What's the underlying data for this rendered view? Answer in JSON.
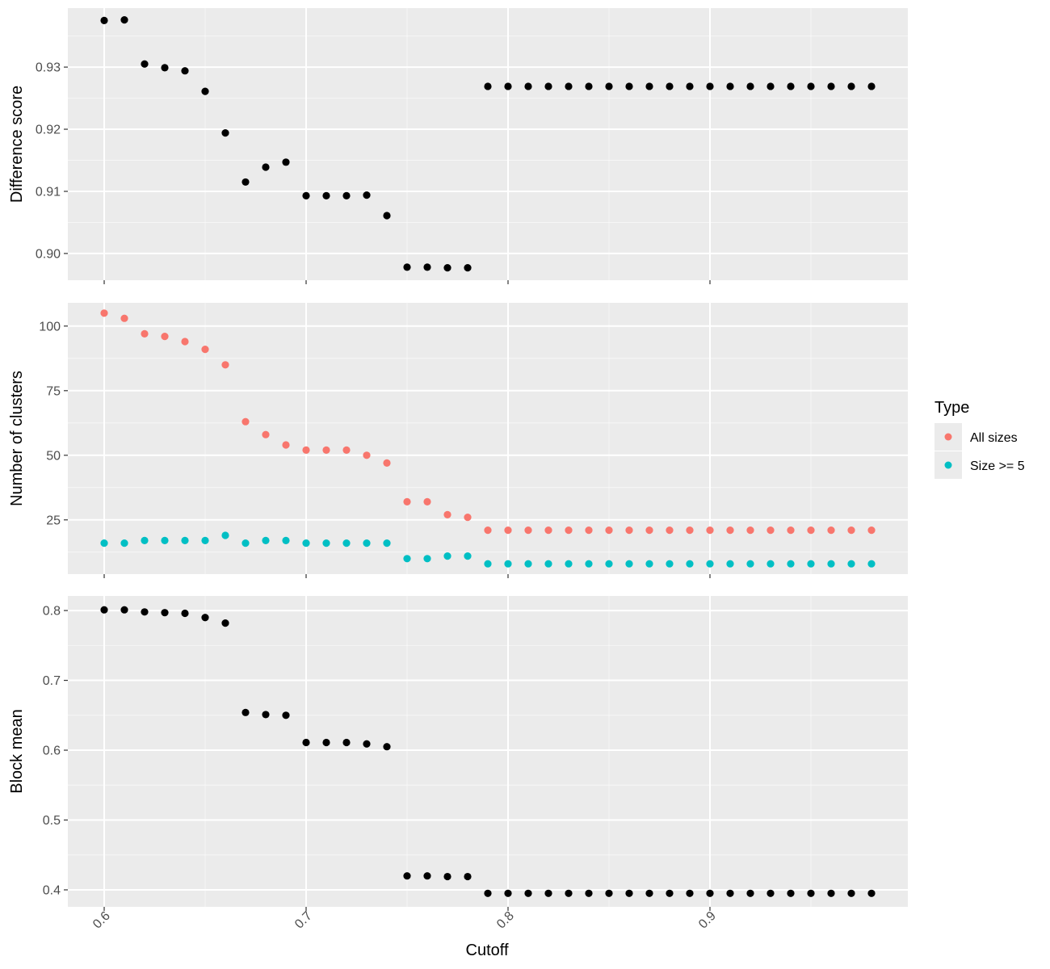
{
  "chart_data": {
    "type": "scatter",
    "x_axis": {
      "label": "Cutoff",
      "range": [
        0.582,
        0.998
      ],
      "ticks": [
        0.6,
        0.7,
        0.8,
        0.9
      ],
      "tick_labels": [
        "0.6",
        "0.7",
        "0.8",
        "0.9"
      ],
      "minor_ticks": [
        0.65,
        0.75,
        0.85,
        0.95
      ]
    },
    "x": [
      0.6,
      0.61,
      0.62,
      0.63,
      0.64,
      0.65,
      0.66,
      0.67,
      0.68,
      0.69,
      0.7,
      0.71,
      0.72,
      0.73,
      0.74,
      0.75,
      0.76,
      0.77,
      0.78,
      0.79,
      0.8,
      0.81,
      0.82,
      0.83,
      0.84,
      0.85,
      0.86,
      0.87,
      0.88,
      0.89,
      0.9,
      0.91,
      0.92,
      0.93,
      0.94,
      0.95,
      0.96,
      0.97,
      0.98
    ],
    "panels": [
      {
        "ylabel": "Difference score",
        "ylim": [
          0.8957,
          0.9395
        ],
        "yticks": [
          0.9,
          0.91,
          0.92,
          0.93
        ],
        "ytick_labels": [
          "0.90",
          "0.91",
          "0.92",
          "0.93"
        ],
        "yminor": [
          0.905,
          0.915,
          0.925,
          0.935
        ],
        "series": [
          {
            "color": "#000000",
            "values": [
              0.9375,
              0.9376,
              0.9305,
              0.9299,
              0.9294,
              0.9261,
              0.9194,
              0.9115,
              0.9139,
              0.9147,
              0.9093,
              0.9093,
              0.9093,
              0.9094,
              0.9061,
              0.8978,
              0.8978,
              0.8977,
              0.8977,
              0.9269,
              0.9269,
              0.9269,
              0.9269,
              0.9269,
              0.9269,
              0.9269,
              0.9269,
              0.9269,
              0.9269,
              0.9269,
              0.9269,
              0.9269,
              0.9269,
              0.9269,
              0.9269,
              0.9269,
              0.9269,
              0.9269,
              0.9269
            ]
          }
        ]
      },
      {
        "ylabel": "Number of clusters",
        "ylim": [
          4,
          109
        ],
        "yticks": [
          25,
          50,
          75,
          100
        ],
        "ytick_labels": [
          "25",
          "50",
          "75",
          "100"
        ],
        "yminor": [
          12.5,
          37.5,
          62.5,
          87.5
        ],
        "series": [
          {
            "name": "All sizes",
            "color": "#F8766D",
            "values": [
              105,
              103,
              97,
              96,
              94,
              91,
              85,
              63,
              58,
              54,
              52,
              52,
              52,
              50,
              47,
              32,
              32,
              27,
              26,
              21,
              21,
              21,
              21,
              21,
              21,
              21,
              21,
              21,
              21,
              21,
              21,
              21,
              21,
              21,
              21,
              21,
              21,
              21,
              21
            ]
          },
          {
            "name": "Size >= 5",
            "color": "#00BFC4",
            "values": [
              16,
              16,
              17,
              17,
              17,
              17,
              19,
              16,
              17,
              17,
              16,
              16,
              16,
              16,
              16,
              10,
              10,
              11,
              11,
              8,
              8,
              8,
              8,
              8,
              8,
              8,
              8,
              8,
              8,
              8,
              8,
              8,
              8,
              8,
              8,
              8,
              8,
              8,
              8
            ]
          }
        ]
      },
      {
        "ylabel": "Block mean",
        "ylim": [
          0.3757,
          0.8209
        ],
        "yticks": [
          0.4,
          0.5,
          0.6,
          0.7,
          0.8
        ],
        "ytick_labels": [
          "0.4",
          "0.5",
          "0.6",
          "0.7",
          "0.8"
        ],
        "yminor": [
          0.45,
          0.55,
          0.65,
          0.75
        ],
        "series": [
          {
            "color": "#000000",
            "values": [
              0.801,
              0.801,
              0.798,
              0.797,
              0.796,
              0.79,
              0.782,
              0.654,
              0.651,
              0.65,
              0.611,
              0.611,
              0.611,
              0.609,
              0.605,
              0.42,
              0.42,
              0.419,
              0.419,
              0.395,
              0.395,
              0.395,
              0.395,
              0.395,
              0.395,
              0.395,
              0.395,
              0.395,
              0.395,
              0.395,
              0.395,
              0.395,
              0.395,
              0.395,
              0.395,
              0.395,
              0.395,
              0.395,
              0.395
            ]
          }
        ]
      }
    ],
    "legend": {
      "title": "Type",
      "placement": "right",
      "entries": [
        {
          "label": "All sizes",
          "color": "#F8766D"
        },
        {
          "label": "Size >= 5",
          "color": "#00BFC4"
        }
      ]
    },
    "grid": true
  }
}
